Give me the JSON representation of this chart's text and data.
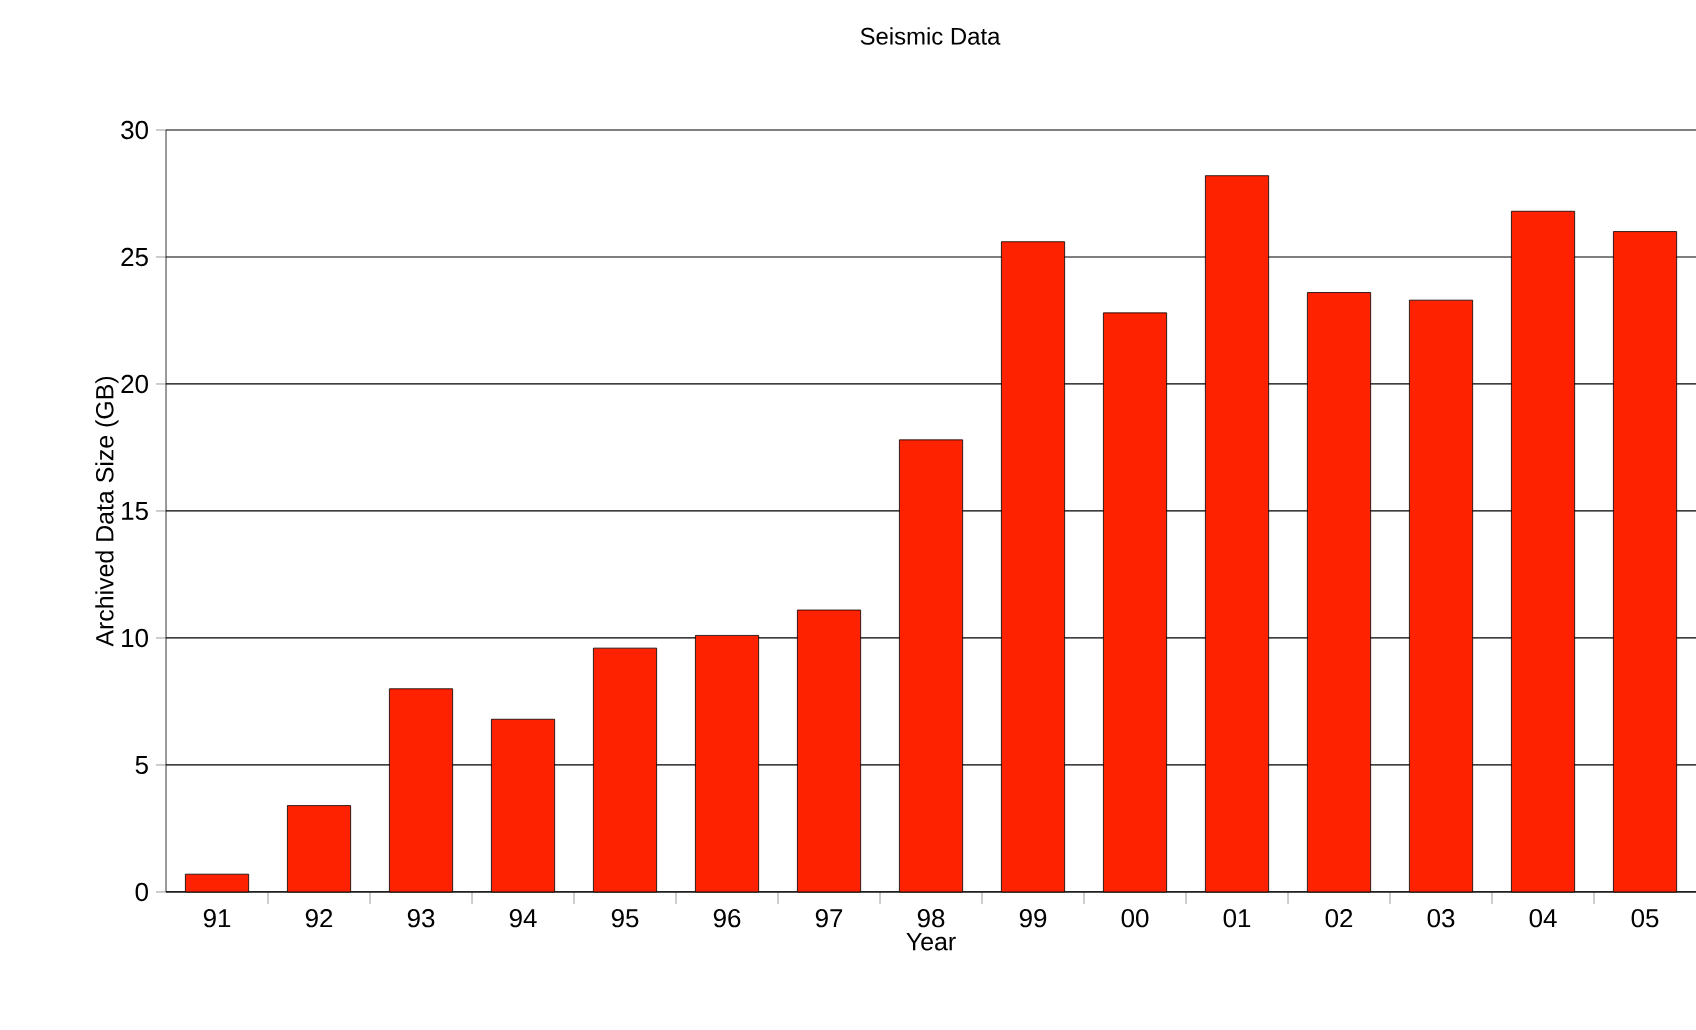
{
  "chart_data": {
    "type": "bar",
    "title": "Seismic Data",
    "xlabel": "Year",
    "ylabel": "Archived Data Size (GB)",
    "categories": [
      "91",
      "92",
      "93",
      "94",
      "95",
      "96",
      "97",
      "98",
      "99",
      "00",
      "01",
      "02",
      "03",
      "04",
      "05"
    ],
    "values": [
      0.7,
      3.4,
      8.0,
      6.8,
      9.6,
      10.1,
      11.1,
      17.8,
      25.6,
      22.8,
      28.2,
      23.6,
      23.3,
      26.8,
      26.0
    ],
    "color": "#ff2200",
    "ylim": [
      0,
      30
    ],
    "yticks": [
      0,
      5,
      10,
      15,
      20,
      25,
      30
    ],
    "grid": "y"
  }
}
